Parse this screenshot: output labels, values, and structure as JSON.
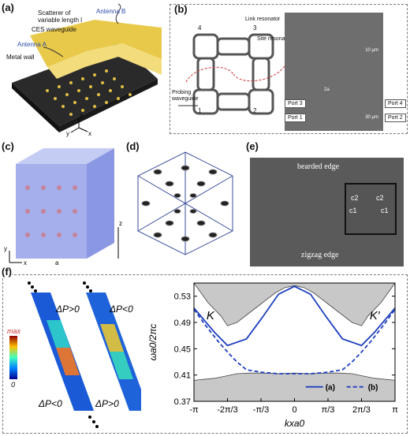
{
  "panels": {
    "a": {
      "label": "(a)",
      "annotations": {
        "scatterer_line1": "Scatterer of",
        "scatterer_line2": "variable length l",
        "ces": "CES waveguide",
        "antenna_a": "Antenna A",
        "antenna_b": "Antenna B",
        "metal_wall": "Metal wall"
      },
      "axes": {
        "z": "z",
        "y": "y",
        "x": "x"
      }
    },
    "b": {
      "label": "(b)",
      "annotations": {
        "link": "Link resonator",
        "site": "Site resonator",
        "probing_line1": "Probing",
        "probing_line2": "waveguide",
        "scale_small": "10 μm",
        "scale_large": "30 μm",
        "cell": "2a"
      },
      "sites": [
        "1",
        "2",
        "3",
        "4"
      ],
      "ports": [
        "Port 3",
        "Port 1",
        "Port 4",
        "Port 2"
      ]
    },
    "c": {
      "label": "(c)",
      "axes": {
        "y": "y",
        "x": "x",
        "z": "z"
      },
      "lattice": "a"
    },
    "d": {
      "label": "(d)"
    },
    "e": {
      "label": "(e)",
      "top_edge": "bearded edge",
      "bottom_edge": "zigzag edge",
      "inset": [
        "c2",
        "c2",
        "c1",
        "c1"
      ]
    },
    "f": {
      "label": "(f)",
      "colorbar": {
        "max": "max",
        "min": "0"
      },
      "field_labels": {
        "left_top": "ΔP>0",
        "left_bottom": "ΔP<0",
        "right_top": "ΔP<0",
        "right_bottom": "ΔP>0"
      }
    }
  },
  "chart_data": {
    "type": "line",
    "ylabel": "ωa0/2πc",
    "xlabel": "kxa0",
    "xlim": [
      -3.1416,
      3.1416
    ],
    "ylim": [
      0.37,
      0.55
    ],
    "xticks": [
      "-π",
      "-2π/3",
      "-π/3",
      "0",
      "π/3",
      "2π/3",
      "π"
    ],
    "yticks": [
      "0.37",
      "0.41",
      "0.45",
      "0.49",
      "0.53"
    ],
    "annotations": [
      "K",
      "K′"
    ],
    "legend": {
      "position": "bottom-right",
      "items": [
        "(a)",
        "(b)"
      ]
    },
    "series": [
      {
        "name": "(a)",
        "style": "solid",
        "x": [
          -3.1416,
          -2.5,
          -2.0944,
          -1.5,
          -1.0,
          -0.5,
          0.0,
          0.5,
          1.0,
          1.5,
          2.0944,
          2.5,
          3.1416
        ],
        "y": [
          0.512,
          0.475,
          0.455,
          0.465,
          0.498,
          0.533,
          0.545,
          0.533,
          0.498,
          0.465,
          0.455,
          0.475,
          0.512
        ]
      },
      {
        "name": "(b)",
        "style": "dashed",
        "x": [
          -3.1416,
          -2.8,
          -2.4,
          -2.0944,
          -1.8,
          -1.5,
          -1.0,
          -0.5,
          0.0,
          0.5,
          1.0,
          1.5,
          1.8,
          2.0944,
          2.4,
          2.8,
          3.1416
        ],
        "y": [
          0.51,
          0.487,
          0.462,
          0.445,
          0.43,
          0.418,
          0.414,
          0.412,
          0.412,
          0.412,
          0.414,
          0.418,
          0.43,
          0.445,
          0.462,
          0.487,
          0.51
        ]
      }
    ],
    "upper_band": {
      "x": [
        -3.1416,
        -2.7,
        -2.3,
        -2.0944,
        -1.8,
        -1.4,
        -1.0,
        -0.6,
        -0.3,
        0.0,
        0.3,
        0.6,
        1.0,
        1.4,
        1.8,
        2.0944,
        2.3,
        2.7,
        3.1416
      ],
      "y": [
        0.55,
        0.52,
        0.5,
        0.485,
        0.49,
        0.505,
        0.52,
        0.535,
        0.543,
        0.546,
        0.543,
        0.535,
        0.52,
        0.505,
        0.49,
        0.485,
        0.5,
        0.52,
        0.55
      ]
    },
    "lower_band": {
      "x": [
        -3.1416,
        -2.5,
        -2.0944,
        -1.8,
        -1.4,
        -1.0,
        -0.5,
        0.0,
        0.5,
        1.0,
        1.4,
        1.8,
        2.0944,
        2.5,
        3.1416
      ],
      "y": [
        0.402,
        0.405,
        0.409,
        0.412,
        0.413,
        0.413,
        0.412,
        0.413,
        0.412,
        0.413,
        0.413,
        0.412,
        0.409,
        0.405,
        0.402
      ]
    }
  }
}
